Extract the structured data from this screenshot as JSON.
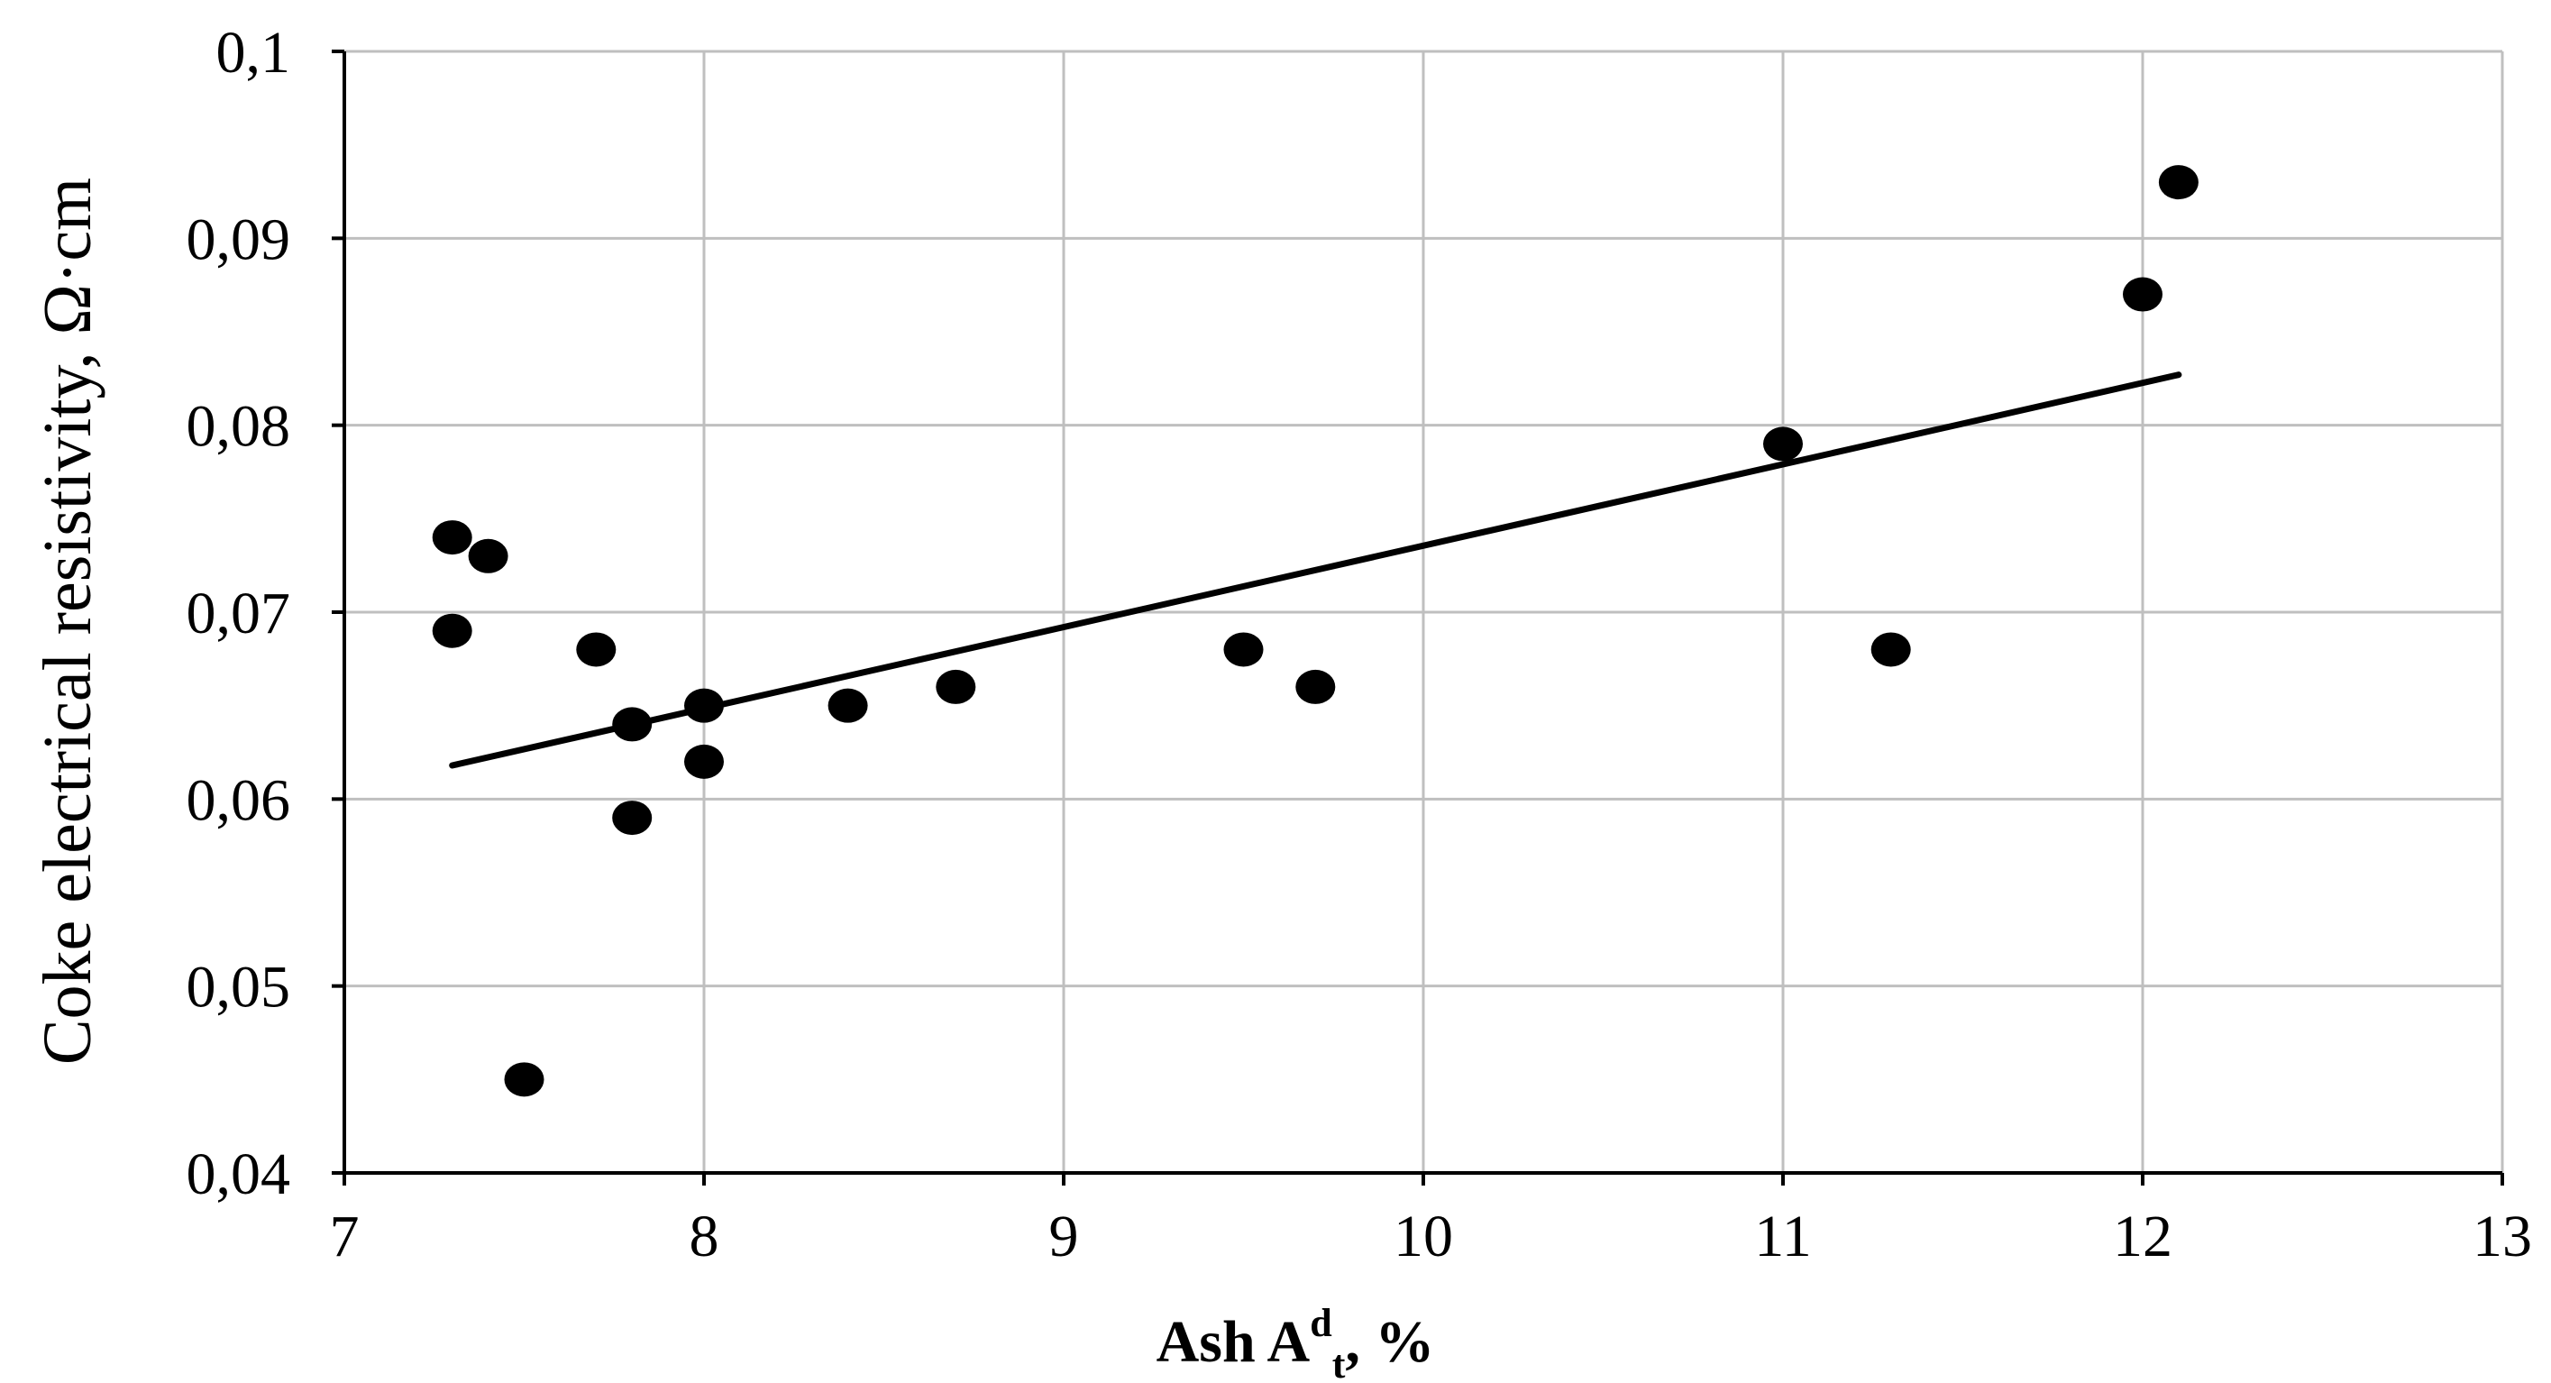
{
  "chart_data": {
    "type": "scatter",
    "title": "",
    "xlabel": {
      "main": "Ash A",
      "sup": "d",
      "sub": "t",
      "suffix": ", %"
    },
    "ylabel": "Coke electrical   resistivity,   Ω·cm",
    "xlim": [
      7,
      13
    ],
    "ylim": [
      0.04,
      0.1
    ],
    "x_ticks": [
      {
        "value": 7,
        "label": "7"
      },
      {
        "value": 8,
        "label": "8"
      },
      {
        "value": 9,
        "label": "9"
      },
      {
        "value": 10,
        "label": "10"
      },
      {
        "value": 11,
        "label": "11"
      },
      {
        "value": 12,
        "label": "12"
      },
      {
        "value": 13,
        "label": "13"
      }
    ],
    "y_ticks": [
      {
        "value": 0.04,
        "label": "0,04"
      },
      {
        "value": 0.05,
        "label": "0,05"
      },
      {
        "value": 0.06,
        "label": "0,06"
      },
      {
        "value": 0.07,
        "label": "0,07"
      },
      {
        "value": 0.08,
        "label": "0,08"
      },
      {
        "value": 0.09,
        "label": "0,09"
      },
      {
        "value": 0.1,
        "label": "0,1"
      }
    ],
    "grid": true,
    "legend": "none",
    "series": [
      {
        "points": [
          {
            "x": 7.3,
            "y": 0.074
          },
          {
            "x": 7.4,
            "y": 0.073
          },
          {
            "x": 7.3,
            "y": 0.069
          },
          {
            "x": 7.5,
            "y": 0.045
          },
          {
            "x": 7.7,
            "y": 0.068
          },
          {
            "x": 7.8,
            "y": 0.064
          },
          {
            "x": 7.8,
            "y": 0.059
          },
          {
            "x": 8.0,
            "y": 0.065
          },
          {
            "x": 8.0,
            "y": 0.062
          },
          {
            "x": 8.4,
            "y": 0.065
          },
          {
            "x": 8.7,
            "y": 0.066
          },
          {
            "x": 9.5,
            "y": 0.068
          },
          {
            "x": 9.7,
            "y": 0.066
          },
          {
            "x": 11.0,
            "y": 0.079
          },
          {
            "x": 11.3,
            "y": 0.068
          },
          {
            "x": 12.0,
            "y": 0.087
          },
          {
            "x": 12.1,
            "y": 0.093
          }
        ],
        "color": "#000000"
      }
    ],
    "trendline": {
      "type": "linear",
      "x": [
        7.3,
        12.1
      ],
      "y": [
        0.0618,
        0.0827
      ],
      "color": "#000000"
    },
    "colors": {
      "grid": "#bfbfbf",
      "axis": "#000000",
      "marker": "#000000"
    }
  }
}
